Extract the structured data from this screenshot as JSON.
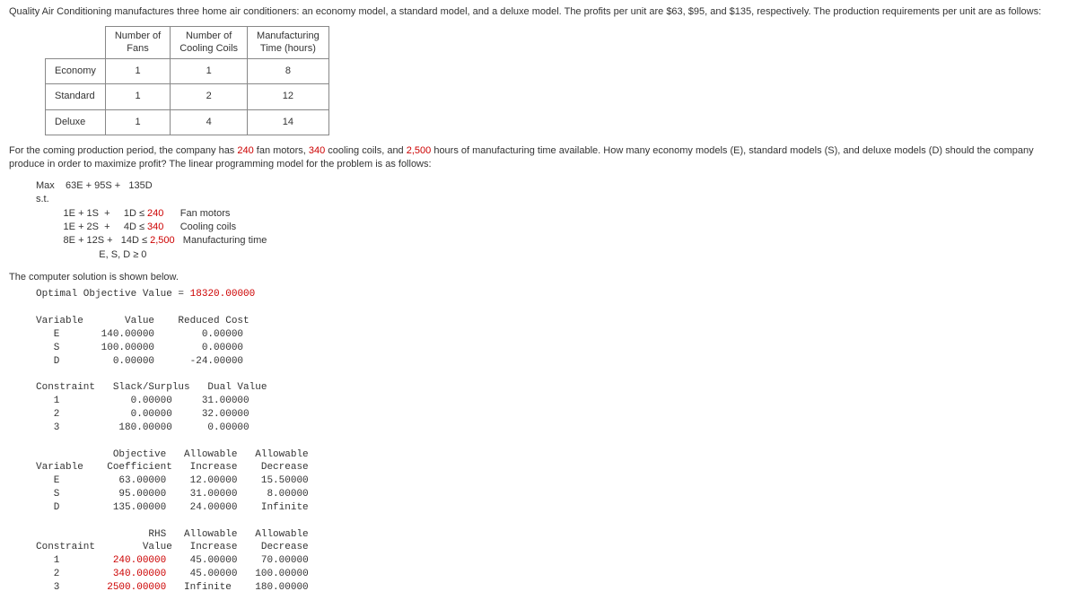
{
  "intro": "Quality Air Conditioning manufactures three home air conditioners: an economy model, a standard model, and a deluxe model. The profits per unit are $63, $95, and $135, respectively. The production requirements per unit are as follows:",
  "table": {
    "headers": [
      "Number of\nFans",
      "Number of\nCooling Coils",
      "Manufacturing\nTime (hours)"
    ],
    "rows": [
      {
        "label": "Economy",
        "cells": [
          "1",
          "1",
          "8"
        ]
      },
      {
        "label": "Standard",
        "cells": [
          "1",
          "2",
          "12"
        ]
      },
      {
        "label": "Deluxe",
        "cells": [
          "1",
          "4",
          "14"
        ]
      }
    ]
  },
  "prompt_parts": {
    "p1": "For the coming production period, the company has ",
    "v1": "240",
    "p2": " fan motors, ",
    "v2": "340",
    "p3": " cooling coils, and ",
    "v3": "2,500",
    "p4": " hours of manufacturing time available. How many economy models (E), standard models (S), and deluxe models (D) should the company produce in order to maximize profit? The linear programming model for the problem is as follows:"
  },
  "lp": {
    "obj_pre": "Max    63E + 95S +   135D",
    "st": "s.t.",
    "c1_lhs": "          1E + 1S  +     1D ≤ ",
    "c1_rhs": "240",
    "c1_lbl": "      Fan motors",
    "c2_lhs": "          1E + 2S  +     4D ≤ ",
    "c2_rhs": "340",
    "c2_lbl": "      Cooling coils",
    "c3_lhs": "          8E + 12S +   14D ≤ ",
    "c3_rhs": "2,500",
    "c3_lbl": "   Manufacturing time",
    "nn": "                       E, S, D ≥ 0"
  },
  "solver_intro": "The computer solution is shown below.",
  "sol": {
    "obj_label": "Optimal Objective Value = ",
    "obj_value": "18320.00000",
    "var_header": "Variable       Value    Reduced Cost",
    "var_rows": [
      "   E       140.00000        0.00000",
      "   S       100.00000        0.00000",
      "   D         0.00000      -24.00000"
    ],
    "con_header": "Constraint   Slack/Surplus   Dual Value",
    "con_rows": [
      "   1            0.00000     31.00000",
      "   2            0.00000     32.00000",
      "   3          180.00000      0.00000"
    ],
    "range_var_h1": "             Objective   Allowable   Allowable",
    "range_var_h2": "Variable    Coefficient   Increase    Decrease",
    "range_var_rows": [
      "   E          63.00000    12.00000    15.50000",
      "   S          95.00000    31.00000     8.00000",
      "   D         135.00000    24.00000    Infinite"
    ],
    "range_con_h1": "                   RHS   Allowable   Allowable",
    "range_con_h2": "Constraint        Value   Increase    Decrease",
    "range_con_rows": [
      {
        "n": "   1         ",
        "v": "240.00000",
        "rest": "    45.00000    70.00000"
      },
      {
        "n": "   2         ",
        "v": "340.00000",
        "rest": "    45.00000   100.00000"
      },
      {
        "n": "   3        ",
        "v": "2500.00000",
        "rest": "   Infinite    180.00000"
      }
    ]
  }
}
